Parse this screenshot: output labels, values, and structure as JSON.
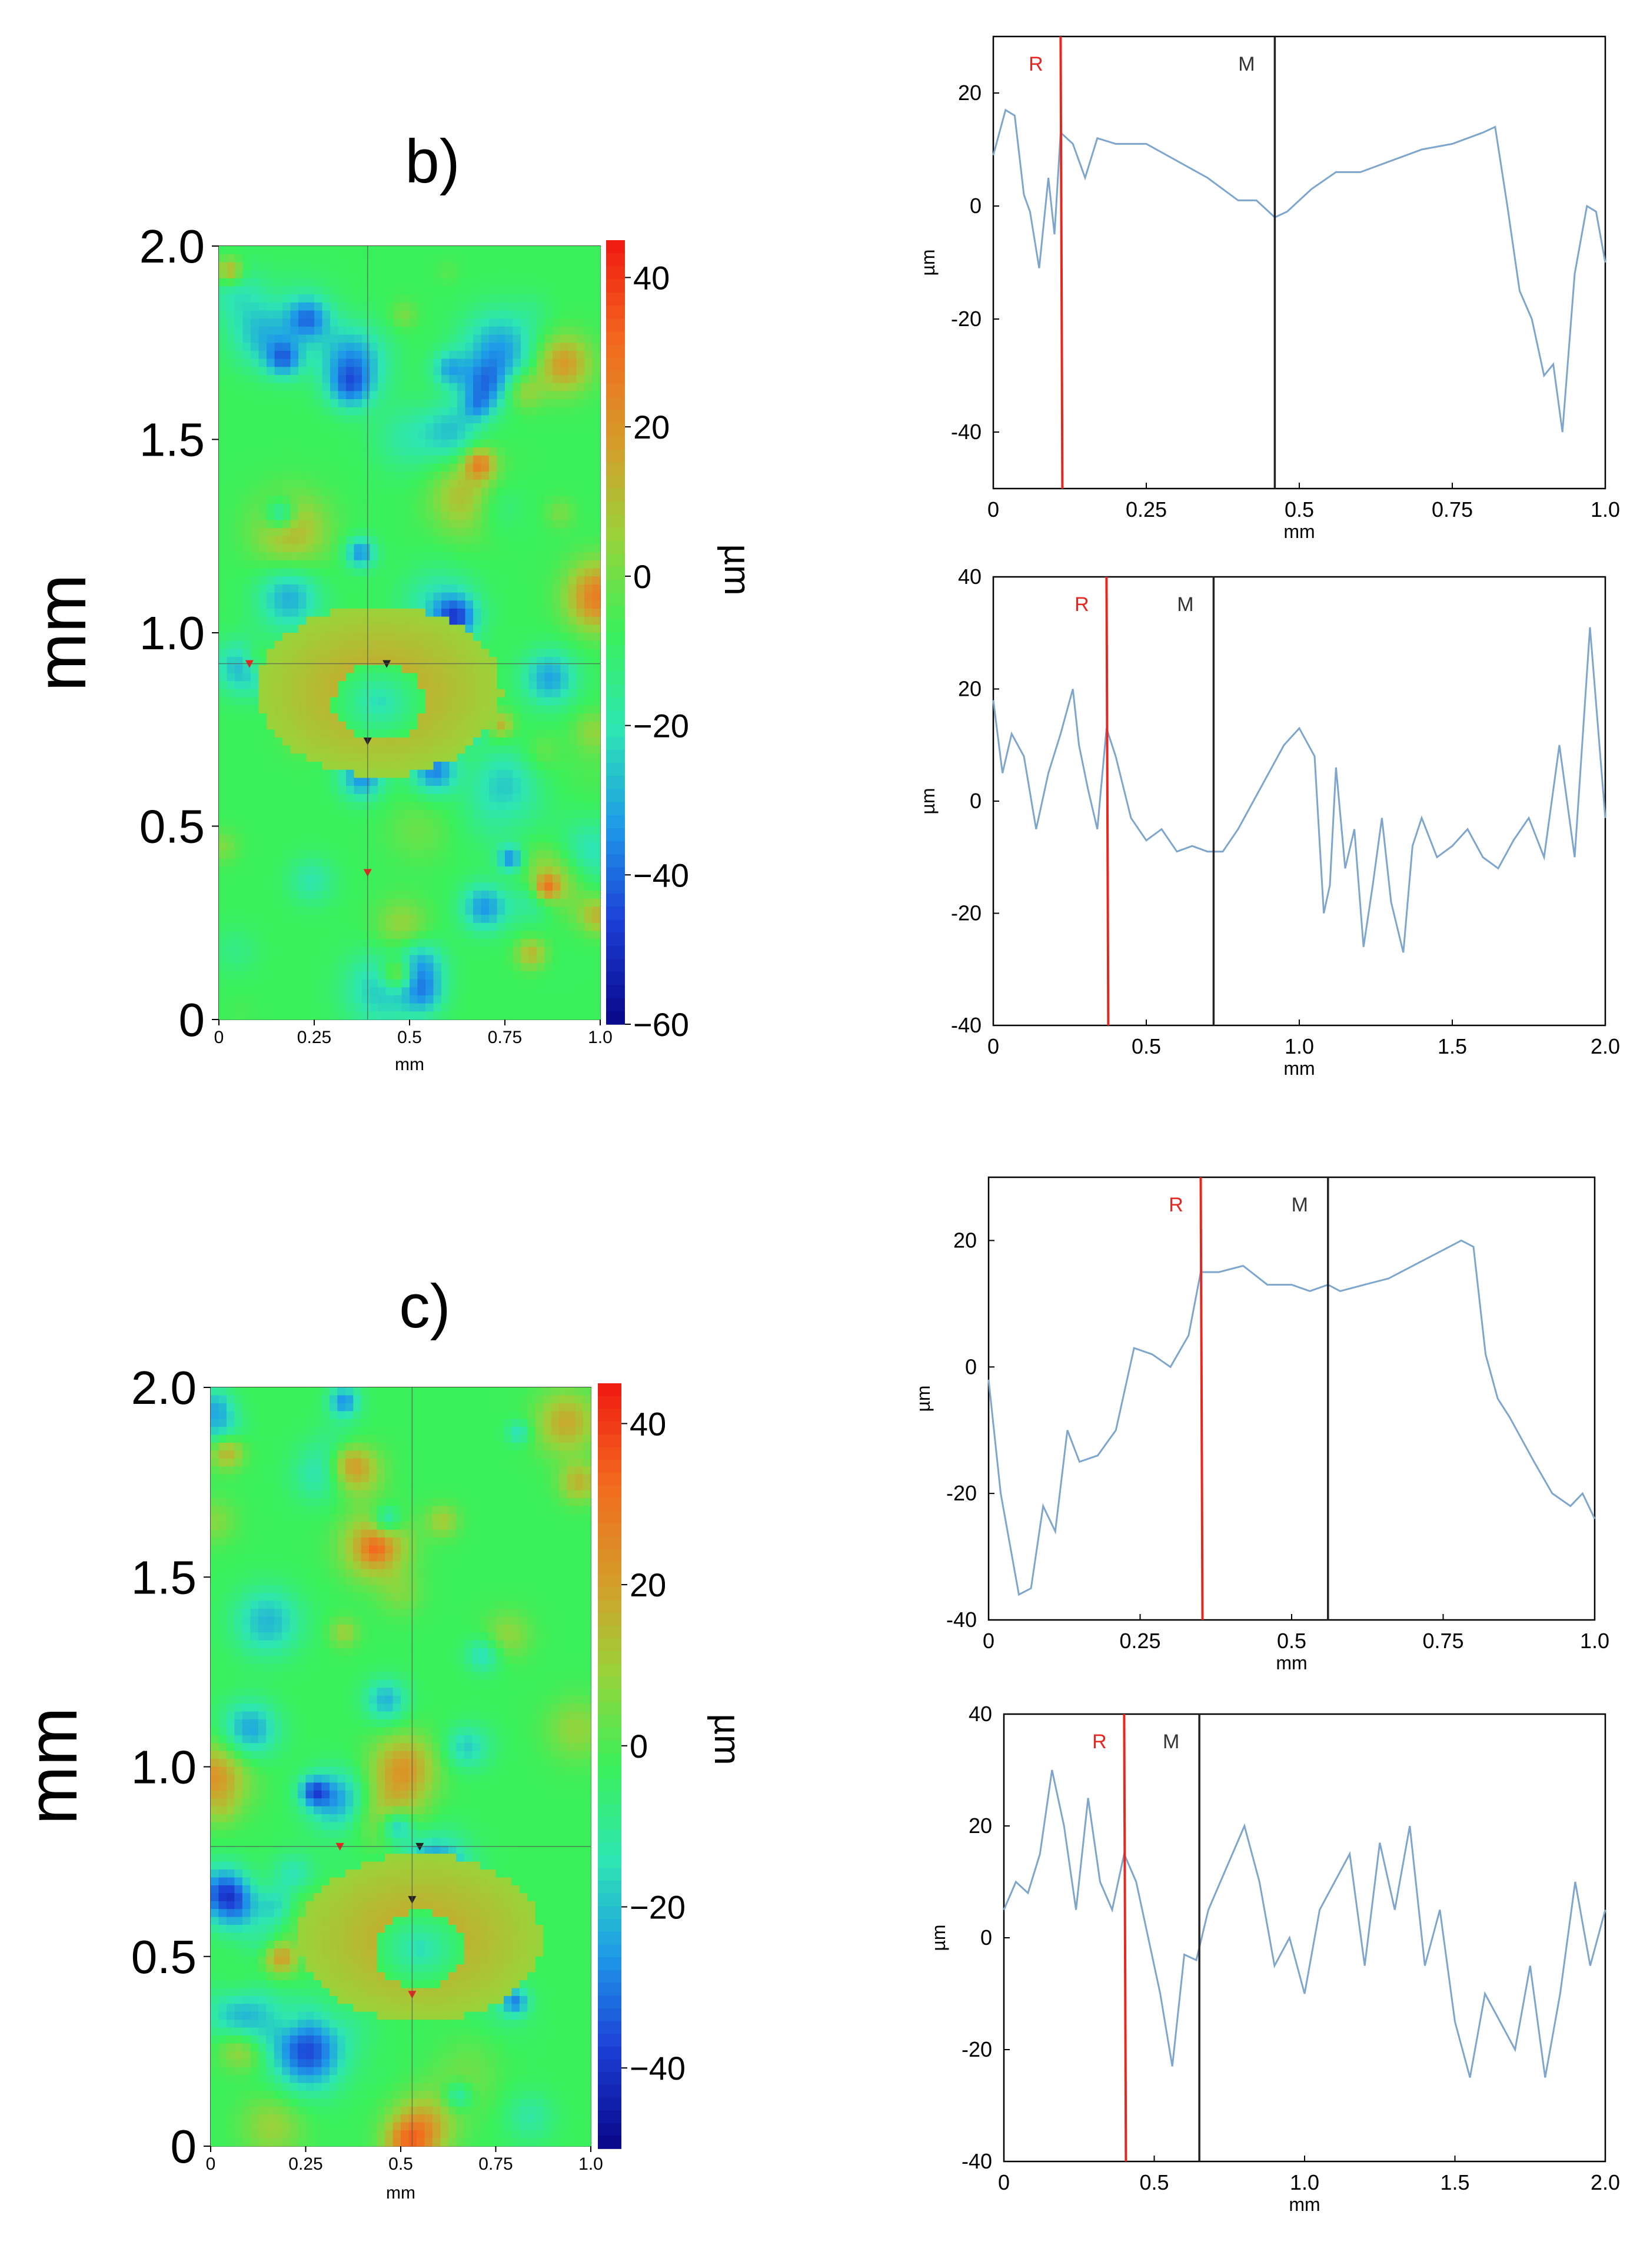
{
  "panel_labels": {
    "b": "b)",
    "c": "c)"
  },
  "colors": {
    "profile_line": "#7ea6cd",
    "marker_R": "#e8261f",
    "marker_M": "#222222",
    "axis": "#000000",
    "heatmap_ramp": [
      "#0a0a8c",
      "#1c3fd6",
      "#1e9be8",
      "#2ee6b2",
      "#3af05a",
      "#9bd23a",
      "#d79a2a",
      "#f26a1e",
      "#f01e12"
    ]
  },
  "chart_data": [
    {
      "id": "map-b",
      "type": "heatmap",
      "title": "",
      "xlabel": "mm",
      "ylabel": "mm",
      "colorbar_label": "µm",
      "xlim": [
        0,
        1.0
      ],
      "ylim": [
        0,
        2.0
      ],
      "xticks": [
        "0",
        "0.25",
        "0.5",
        "0.75",
        "1.0"
      ],
      "yticks": [
        "0",
        "0.5",
        "1.0",
        "1.5",
        "2.0"
      ],
      "colorbar_range": [
        -60,
        45
      ],
      "colorbar_ticks": [
        "40",
        "20",
        "0",
        "−20",
        "−40",
        "−60"
      ],
      "crater_center": [
        0.42,
        0.85
      ],
      "markers": [
        {
          "x": 0.08,
          "y": 0.92,
          "color": "#e8261f"
        },
        {
          "x": 0.44,
          "y": 0.92,
          "color": "#222222"
        },
        {
          "x": 0.39,
          "y": 0.72,
          "color": "#222222"
        },
        {
          "x": 0.39,
          "y": 0.38,
          "color": "#e8261f"
        }
      ]
    },
    {
      "id": "profile-b1",
      "type": "line",
      "xlabel": "mm",
      "ylabel": "µm",
      "xlim": [
        0,
        1.0
      ],
      "ylim": [
        -50,
        30
      ],
      "xticks": [
        0,
        0.25,
        0.5,
        0.75,
        1.0
      ],
      "xtick_labels": [
        "0",
        "0.25",
        "0.5",
        "0.75",
        "1.0"
      ],
      "yticks": [
        20,
        0,
        -20,
        -40
      ],
      "ytick_labels": [
        "20",
        "0",
        "-20",
        "-40"
      ],
      "marker_R": 0.11,
      "marker_M": 0.46,
      "marker_R_label": "R",
      "marker_M_label": "M",
      "series": [
        {
          "name": "profile",
          "x": [
            0,
            0.02,
            0.035,
            0.05,
            0.06,
            0.075,
            0.09,
            0.1,
            0.11,
            0.13,
            0.15,
            0.17,
            0.2,
            0.25,
            0.3,
            0.35,
            0.4,
            0.43,
            0.46,
            0.48,
            0.52,
            0.56,
            0.6,
            0.65,
            0.7,
            0.75,
            0.8,
            0.82,
            0.84,
            0.86,
            0.88,
            0.9,
            0.915,
            0.93,
            0.95,
            0.97,
            0.985,
            1.0
          ],
          "y": [
            9,
            17,
            16,
            2,
            -1,
            -11,
            5,
            -5,
            13,
            11,
            5,
            12,
            11,
            11,
            8,
            5,
            1,
            1,
            -2,
            -1,
            3,
            6,
            6,
            8,
            10,
            11,
            13,
            14,
            0,
            -15,
            -20,
            -30,
            -28,
            -40,
            -12,
            0,
            -1,
            -10
          ]
        }
      ]
    },
    {
      "id": "profile-b2",
      "type": "line",
      "xlabel": "mm",
      "ylabel": "µm",
      "xlim": [
        0,
        2.0
      ],
      "ylim": [
        -40,
        40
      ],
      "xticks": [
        0,
        0.5,
        1.0,
        1.5,
        2.0
      ],
      "xtick_labels": [
        "0",
        "0.5",
        "1.0",
        "1.5",
        "2.0"
      ],
      "yticks": [
        40,
        20,
        0,
        -20,
        -40
      ],
      "ytick_labels": [
        "40",
        "20",
        "0",
        "-20",
        "-40"
      ],
      "marker_R": 0.37,
      "marker_M": 0.72,
      "marker_R_label": "R",
      "marker_M_label": "M",
      "series": [
        {
          "name": "profile",
          "x": [
            0,
            0.03,
            0.06,
            0.1,
            0.14,
            0.18,
            0.22,
            0.26,
            0.28,
            0.31,
            0.34,
            0.37,
            0.4,
            0.45,
            0.5,
            0.55,
            0.6,
            0.65,
            0.7,
            0.75,
            0.8,
            0.85,
            0.9,
            0.95,
            1.0,
            1.05,
            1.08,
            1.1,
            1.12,
            1.15,
            1.18,
            1.21,
            1.24,
            1.27,
            1.3,
            1.34,
            1.37,
            1.4,
            1.45,
            1.5,
            1.55,
            1.6,
            1.65,
            1.7,
            1.75,
            1.8,
            1.85,
            1.9,
            1.95,
            2.0
          ],
          "y": [
            18,
            5,
            12,
            8,
            -5,
            5,
            12,
            20,
            10,
            2,
            -5,
            13,
            8,
            -3,
            -7,
            -5,
            -9,
            -8,
            -9,
            -9,
            -5,
            0,
            5,
            10,
            13,
            8,
            -20,
            -15,
            6,
            -12,
            -5,
            -26,
            -15,
            -3,
            -18,
            -27,
            -8,
            -3,
            -10,
            -8,
            -5,
            -10,
            -12,
            -7,
            -3,
            -10,
            10,
            -10,
            31,
            -3
          ]
        }
      ]
    },
    {
      "id": "map-c",
      "type": "heatmap",
      "title": "",
      "xlabel": "mm",
      "ylabel": "mm",
      "colorbar_label": "µm",
      "xlim": [
        0,
        1.0
      ],
      "ylim": [
        0,
        2.0
      ],
      "xticks": [
        "0",
        "0.25",
        "0.5",
        "0.75",
        "1.0"
      ],
      "yticks": [
        "0",
        "0.5",
        "1.0",
        "1.5",
        "2.0"
      ],
      "colorbar_range": [
        -50,
        45
      ],
      "colorbar_ticks": [
        "40",
        "20",
        "0",
        "−20",
        "−40"
      ],
      "crater_center": [
        0.55,
        0.55
      ],
      "markers": [
        {
          "x": 0.34,
          "y": 0.79,
          "color": "#e8261f"
        },
        {
          "x": 0.55,
          "y": 0.79,
          "color": "#222222"
        },
        {
          "x": 0.53,
          "y": 0.65,
          "color": "#222222"
        },
        {
          "x": 0.53,
          "y": 0.4,
          "color": "#e8261f"
        }
      ]
    },
    {
      "id": "profile-c1",
      "type": "line",
      "xlabel": "mm",
      "ylabel": "µm",
      "xlim": [
        0,
        1.0
      ],
      "ylim": [
        -40,
        30
      ],
      "xticks": [
        0,
        0.25,
        0.5,
        0.75,
        1.0
      ],
      "xtick_labels": [
        "0",
        "0.25",
        "0.5",
        "0.75",
        "1.0"
      ],
      "yticks": [
        20,
        0,
        -20,
        -40
      ],
      "ytick_labels": [
        "20",
        "0",
        "-20",
        "-40"
      ],
      "marker_R": 0.35,
      "marker_M": 0.56,
      "marker_R_label": "R",
      "marker_M_label": "M",
      "series": [
        {
          "name": "profile",
          "x": [
            0,
            0.02,
            0.05,
            0.07,
            0.09,
            0.11,
            0.13,
            0.15,
            0.18,
            0.21,
            0.24,
            0.27,
            0.3,
            0.33,
            0.35,
            0.38,
            0.42,
            0.46,
            0.5,
            0.53,
            0.56,
            0.58,
            0.62,
            0.66,
            0.7,
            0.74,
            0.78,
            0.8,
            0.82,
            0.84,
            0.86,
            0.9,
            0.93,
            0.96,
            0.98,
            1.0
          ],
          "y": [
            -2,
            -20,
            -36,
            -35,
            -22,
            -26,
            -10,
            -15,
            -14,
            -10,
            3,
            2,
            0,
            5,
            15,
            15,
            16,
            13,
            13,
            12,
            13,
            12,
            13,
            14,
            16,
            18,
            20,
            19,
            2,
            -5,
            -8,
            -15,
            -20,
            -22,
            -20,
            -24
          ]
        }
      ]
    },
    {
      "id": "profile-c2",
      "type": "line",
      "xlabel": "mm",
      "ylabel": "µm",
      "xlim": [
        0,
        2.0
      ],
      "ylim": [
        -40,
        40
      ],
      "xticks": [
        0,
        0.5,
        1.0,
        1.5,
        2.0
      ],
      "xtick_labels": [
        "0",
        "0.5",
        "1.0",
        "1.5",
        "2.0"
      ],
      "yticks": [
        40,
        20,
        0,
        -20,
        -40
      ],
      "ytick_labels": [
        "40",
        "20",
        "0",
        "-20",
        "-40"
      ],
      "marker_R": 0.4,
      "marker_M": 0.65,
      "marker_R_label": "R",
      "marker_M_label": "M",
      "series": [
        {
          "name": "profile",
          "x": [
            0,
            0.04,
            0.08,
            0.12,
            0.16,
            0.2,
            0.24,
            0.28,
            0.32,
            0.36,
            0.4,
            0.44,
            0.48,
            0.52,
            0.56,
            0.6,
            0.64,
            0.68,
            0.72,
            0.76,
            0.8,
            0.85,
            0.9,
            0.95,
            1.0,
            1.05,
            1.1,
            1.15,
            1.2,
            1.25,
            1.3,
            1.35,
            1.4,
            1.45,
            1.5,
            1.55,
            1.6,
            1.65,
            1.7,
            1.75,
            1.8,
            1.85,
            1.9,
            1.95,
            2.0
          ],
          "y": [
            5,
            10,
            8,
            15,
            30,
            20,
            5,
            25,
            10,
            5,
            15,
            10,
            0,
            -10,
            -23,
            -3,
            -4,
            5,
            10,
            15,
            20,
            10,
            -5,
            0,
            -10,
            5,
            10,
            15,
            -5,
            17,
            5,
            20,
            -5,
            5,
            -15,
            -25,
            -10,
            -15,
            -20,
            -5,
            -25,
            -10,
            10,
            -5,
            5
          ]
        }
      ]
    }
  ]
}
